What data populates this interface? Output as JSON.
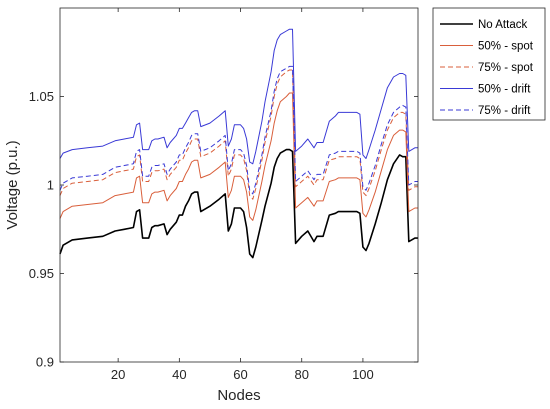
{
  "chart_data": {
    "type": "line",
    "title": "",
    "xlabel": "Nodes",
    "ylabel": "Voltage (p.u.)",
    "xlim": [
      1,
      118
    ],
    "ylim": [
      0.9,
      1.1
    ],
    "xticks": [
      20,
      40,
      60,
      80,
      100
    ],
    "xtick_labels": [
      "20",
      "40",
      "60",
      "80",
      "100"
    ],
    "yticks": [
      0.9,
      0.95,
      1.0,
      1.05
    ],
    "ytick_labels": [
      "0.9",
      "0.95",
      "1",
      "1.05"
    ],
    "grid": false,
    "legend_position": "outside-top-right",
    "x": [
      1,
      2,
      5,
      10,
      15,
      19,
      22,
      25,
      26,
      27,
      28,
      30,
      31,
      32,
      33,
      35,
      36,
      37,
      39,
      40,
      41,
      42,
      43,
      44,
      45,
      46,
      47,
      50,
      53,
      55,
      56,
      57,
      58,
      60,
      61,
      62,
      63,
      64,
      65,
      67,
      68,
      70,
      71,
      72,
      73,
      75,
      76,
      77,
      78,
      80,
      82,
      84,
      85,
      87,
      89,
      91,
      92,
      95,
      98,
      99,
      100,
      101,
      102,
      104,
      106,
      108,
      110,
      112,
      113,
      114,
      115,
      117,
      118
    ],
    "series": [
      {
        "name": "No Attack",
        "color": "#000000",
        "dash": "solid",
        "values": [
          0.961,
          0.966,
          0.969,
          0.97,
          0.971,
          0.974,
          0.975,
          0.976,
          0.985,
          0.986,
          0.97,
          0.97,
          0.976,
          0.977,
          0.977,
          0.978,
          0.972,
          0.975,
          0.979,
          0.983,
          0.983,
          0.988,
          0.991,
          0.995,
          0.996,
          0.996,
          0.985,
          0.988,
          0.992,
          0.995,
          0.974,
          0.978,
          0.987,
          0.987,
          0.985,
          0.976,
          0.961,
          0.959,
          0.965,
          0.98,
          0.988,
          1.001,
          1.01,
          1.015,
          1.018,
          1.02,
          1.02,
          1.019,
          0.967,
          0.971,
          0.974,
          0.968,
          0.971,
          0.971,
          0.983,
          0.984,
          0.985,
          0.985,
          0.985,
          0.984,
          0.965,
          0.963,
          0.967,
          0.978,
          0.99,
          1.003,
          1.012,
          1.017,
          1.016,
          1.016,
          0.968,
          0.97,
          0.97
        ]
      },
      {
        "name": "50% - spot",
        "color": "#d95f3b",
        "dash": "solid",
        "values": [
          0.981,
          0.985,
          0.988,
          0.989,
          0.99,
          0.994,
          0.995,
          0.996,
          1.004,
          1.005,
          0.99,
          0.99,
          0.995,
          0.996,
          0.996,
          0.997,
          0.991,
          0.994,
          0.998,
          1.002,
          1.002,
          1.006,
          1.009,
          1.013,
          1.014,
          1.014,
          1.004,
          1.006,
          1.01,
          1.013,
          0.993,
          0.997,
          1.005,
          1.005,
          1.003,
          0.996,
          0.982,
          0.98,
          0.986,
          1.002,
          1.011,
          1.025,
          1.035,
          1.042,
          1.047,
          1.05,
          1.052,
          1.052,
          0.987,
          0.99,
          0.993,
          0.988,
          0.991,
          0.991,
          1.002,
          1.003,
          1.004,
          1.004,
          1.004,
          1.003,
          0.984,
          0.982,
          0.986,
          0.996,
          1.008,
          1.02,
          1.028,
          1.031,
          1.031,
          1.03,
          0.985,
          0.987,
          0.987
        ]
      },
      {
        "name": "75% - spot",
        "color": "#d95f3b",
        "dash": "dashed",
        "values": [
          0.994,
          0.998,
          1.001,
          1.002,
          1.003,
          1.007,
          1.008,
          1.009,
          1.016,
          1.017,
          1.002,
          1.002,
          1.007,
          1.008,
          1.008,
          1.009,
          1.003,
          1.006,
          1.01,
          1.014,
          1.014,
          1.018,
          1.021,
          1.025,
          1.026,
          1.026,
          1.016,
          1.018,
          1.022,
          1.025,
          1.005,
          1.009,
          1.017,
          1.017,
          1.015,
          1.008,
          0.994,
          0.992,
          0.998,
          1.014,
          1.024,
          1.039,
          1.05,
          1.057,
          1.061,
          1.064,
          1.065,
          1.065,
          0.999,
          1.002,
          1.005,
          1.0,
          1.003,
          1.003,
          1.014,
          1.015,
          1.016,
          1.016,
          1.016,
          1.015,
          0.996,
          0.994,
          0.998,
          1.008,
          1.02,
          1.031,
          1.038,
          1.041,
          1.041,
          1.04,
          0.997,
          0.999,
          0.999
        ]
      },
      {
        "name": "50% - drift",
        "color": "#3a3ad6",
        "dash": "solid",
        "values": [
          1.015,
          1.018,
          1.02,
          1.021,
          1.022,
          1.025,
          1.026,
          1.027,
          1.034,
          1.035,
          1.02,
          1.02,
          1.025,
          1.026,
          1.026,
          1.027,
          1.021,
          1.024,
          1.028,
          1.032,
          1.032,
          1.035,
          1.038,
          1.041,
          1.042,
          1.042,
          1.033,
          1.035,
          1.039,
          1.042,
          1.022,
          1.026,
          1.034,
          1.034,
          1.032,
          1.026,
          1.013,
          1.012,
          1.019,
          1.036,
          1.047,
          1.064,
          1.076,
          1.082,
          1.085,
          1.087,
          1.088,
          1.088,
          1.019,
          1.022,
          1.026,
          1.021,
          1.024,
          1.024,
          1.036,
          1.039,
          1.041,
          1.041,
          1.041,
          1.04,
          1.017,
          1.015,
          1.02,
          1.031,
          1.043,
          1.055,
          1.061,
          1.063,
          1.063,
          1.062,
          1.019,
          1.021,
          1.021
        ]
      },
      {
        "name": "75% - drift",
        "color": "#3a3ad6",
        "dash": "dashed",
        "values": [
          0.997,
          1.001,
          1.004,
          1.005,
          1.006,
          1.01,
          1.011,
          1.012,
          1.019,
          1.02,
          1.005,
          1.005,
          1.01,
          1.011,
          1.011,
          1.012,
          1.006,
          1.009,
          1.013,
          1.017,
          1.017,
          1.021,
          1.024,
          1.028,
          1.029,
          1.029,
          1.019,
          1.021,
          1.025,
          1.028,
          1.008,
          1.012,
          1.02,
          1.02,
          1.018,
          1.011,
          0.997,
          0.995,
          1.001,
          1.017,
          1.027,
          1.042,
          1.053,
          1.06,
          1.064,
          1.066,
          1.067,
          1.067,
          1.002,
          1.005,
          1.008,
          1.003,
          1.006,
          1.006,
          1.017,
          1.018,
          1.019,
          1.019,
          1.019,
          1.018,
          0.999,
          0.997,
          1.001,
          1.011,
          1.023,
          1.034,
          1.041,
          1.044,
          1.045,
          1.044,
          1.0,
          1.002,
          1.002
        ]
      }
    ]
  }
}
